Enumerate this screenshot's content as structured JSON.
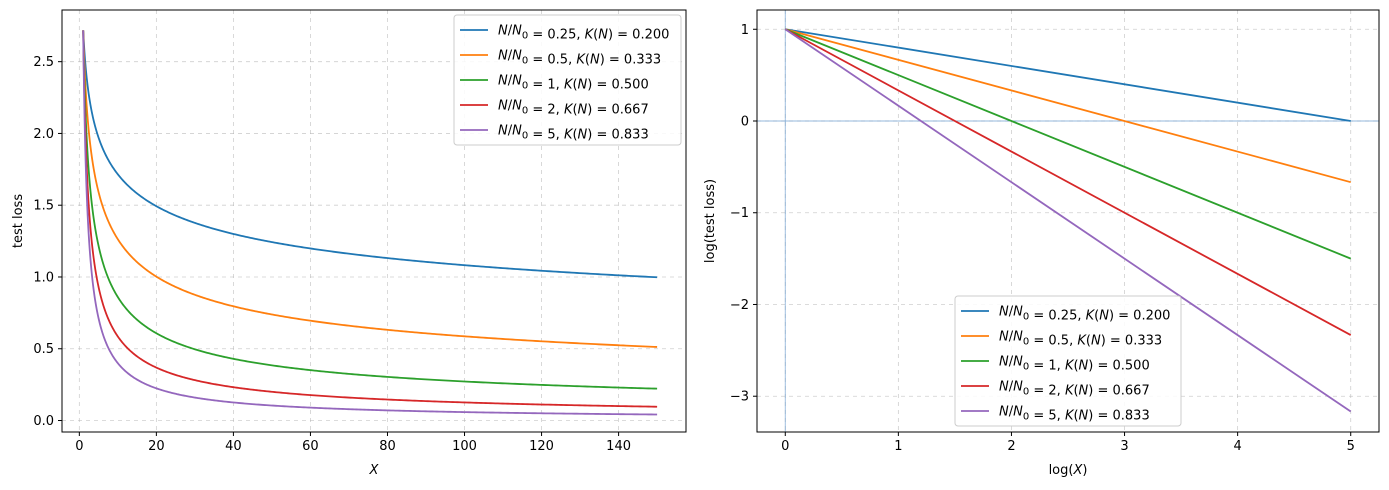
{
  "chart_data": [
    {
      "type": "line",
      "title": "",
      "xlabel": "X",
      "ylabel": "test loss",
      "xlim": [
        -4.5,
        157.5
      ],
      "ylim": [
        -0.08,
        2.86
      ],
      "xticks": [
        0,
        20,
        40,
        60,
        80,
        100,
        120,
        140
      ],
      "xtick_labels": [
        "0",
        "20",
        "40",
        "60",
        "80",
        "100",
        "120",
        "140"
      ],
      "yticks": [
        0.0,
        0.5,
        1.0,
        1.5,
        2.0,
        2.5
      ],
      "ytick_labels": [
        "0.0",
        "0.5",
        "1.0",
        "1.5",
        "2.0",
        "2.5"
      ],
      "grid": true,
      "legend_position": "top-right",
      "x_range": [
        1,
        150
      ],
      "series": [
        {
          "name": "N/N0 = 0.25, K(N) = 0.200",
          "color": "#1f77b4",
          "function": "e * x^(-K)",
          "K": 0.2
        },
        {
          "name": "N/N0 = 0.5, K(N) = 0.333",
          "color": "#ff7f0e",
          "function": "e * x^(-K)",
          "K": 0.333
        },
        {
          "name": "N/N0 = 1, K(N) = 0.500",
          "color": "#2ca02c",
          "function": "e * x^(-K)",
          "K": 0.5
        },
        {
          "name": "N/N0 = 2, K(N) = 0.667",
          "color": "#d62728",
          "function": "e * x^(-K)",
          "K": 0.667
        },
        {
          "name": "N/N0 = 5, K(N) = 0.833",
          "color": "#9467bd",
          "function": "e * x^(-K)",
          "K": 0.833
        }
      ],
      "sample_points": {
        "x": [
          1,
          20,
          40,
          60,
          80,
          100,
          120,
          150
        ],
        "K_0.200": [
          2.718,
          1.5,
          1.3,
          1.2,
          1.13,
          1.08,
          1.04,
          1.0
        ],
        "K_0.333": [
          2.718,
          1.0,
          0.8,
          0.7,
          0.63,
          0.59,
          0.55,
          0.51
        ],
        "K_0.500": [
          2.718,
          0.61,
          0.43,
          0.35,
          0.3,
          0.27,
          0.25,
          0.22
        ],
        "K_0.667": [
          2.718,
          0.37,
          0.23,
          0.18,
          0.15,
          0.13,
          0.11,
          0.1
        ],
        "K_0.833": [
          2.718,
          0.23,
          0.13,
          0.09,
          0.07,
          0.06,
          0.05,
          0.04
        ]
      }
    },
    {
      "type": "line",
      "title": "",
      "xlabel": "log(X)",
      "ylabel": "log(test loss)",
      "xlim": [
        -0.25,
        5.25
      ],
      "ylim": [
        -3.39,
        1.21
      ],
      "xticks": [
        0,
        1,
        2,
        3,
        4,
        5
      ],
      "xtick_labels": [
        "0",
        "1",
        "2",
        "3",
        "4",
        "5"
      ],
      "yticks": [
        1,
        0,
        -1,
        -2,
        -3
      ],
      "ytick_labels": [
        "1",
        "0",
        "−1",
        "−2",
        "−3"
      ],
      "grid": true,
      "legend_position": "lower-center",
      "reference_lines": {
        "horizontal_y": 0,
        "vertical_x": 0,
        "color": "#6a9ccf"
      },
      "x_range": [
        0,
        5
      ],
      "series": [
        {
          "name": "N/N0 = 0.25, K(N) = 0.200",
          "color": "#1f77b4",
          "x": [
            0,
            5
          ],
          "y": [
            1,
            0.0
          ]
        },
        {
          "name": "N/N0 = 0.5, K(N) = 0.333",
          "color": "#ff7f0e",
          "x": [
            0,
            5
          ],
          "y": [
            1,
            -0.667
          ]
        },
        {
          "name": "N/N0 = 1, K(N) = 0.500",
          "color": "#2ca02c",
          "x": [
            0,
            5
          ],
          "y": [
            1,
            -1.5
          ]
        },
        {
          "name": "N/N0 = 2, K(N) = 0.667",
          "color": "#d62728",
          "x": [
            0,
            5
          ],
          "y": [
            1,
            -2.333
          ]
        },
        {
          "name": "N/N0 = 5, K(N) = 0.833",
          "color": "#9467bd",
          "x": [
            0,
            5
          ],
          "y": [
            1,
            -3.167
          ]
        }
      ]
    }
  ]
}
